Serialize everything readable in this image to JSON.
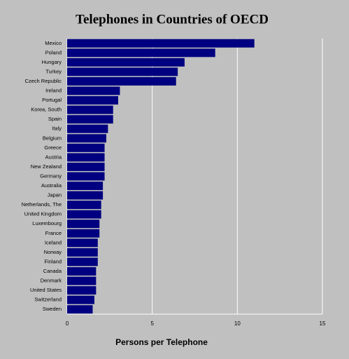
{
  "chart_data": {
    "type": "hbar",
    "title": "Telephones in Countries of OECD",
    "x_label": "Persons per Telephone",
    "categories": [
      "Mexico",
      "Poland",
      "Hungary",
      "Turkey",
      "Czech Republic",
      "Ireland",
      "Portugal",
      "Korea, South",
      "Spain",
      "Italy",
      "Belgium",
      "Greece",
      "Austria",
      "New Zealand",
      "Germany",
      "Australia",
      "Japan",
      "Netherlands, The",
      "United Kingdom",
      "Luxembourg",
      "France",
      "Iceland",
      "Norway",
      "Finland",
      "Canada",
      "Denmark",
      "United States",
      "Switzerland",
      "Sweden"
    ],
    "values": [
      11.0,
      8.7,
      6.9,
      6.5,
      6.4,
      3.1,
      3.0,
      2.7,
      2.7,
      2.4,
      2.3,
      2.2,
      2.2,
      2.2,
      2.2,
      2.1,
      2.1,
      2.0,
      2.0,
      1.9,
      1.9,
      1.8,
      1.8,
      1.8,
      1.7,
      1.7,
      1.7,
      1.6,
      1.5
    ],
    "color": "#000080",
    "xlim": [
      0,
      15
    ],
    "xticks": [
      0,
      5,
      10,
      15
    ],
    "grid": true
  }
}
